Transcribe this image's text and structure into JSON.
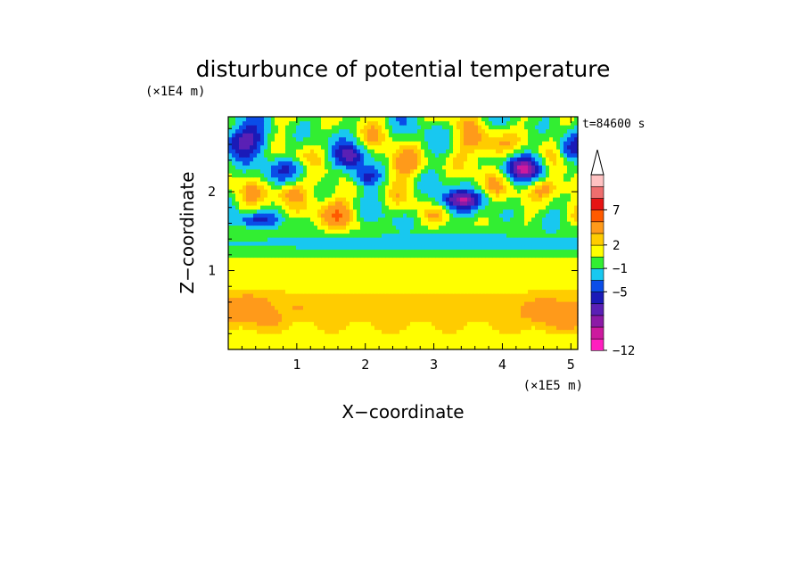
{
  "chart_data": {
    "type": "heatmap",
    "title": "disturbunce of potential temperature",
    "time_label": "t=84600 s",
    "xlabel": "X−coordinate",
    "ylabel": "Z−coordinate",
    "x_scale_label": "(×1E5 m)",
    "y_scale_label": "(×1E4 m)",
    "xlim": [
      0,
      5.1
    ],
    "ylim": [
      0,
      2.95
    ],
    "x_ticks": [
      1,
      2,
      3,
      4,
      5
    ],
    "y_ticks": [
      1,
      2
    ],
    "x_tick_labels": [
      "1",
      "2",
      "3",
      "4",
      "5"
    ],
    "y_tick_labels": [
      "1",
      "2"
    ],
    "colorbar": {
      "levels": [
        -12,
        -11,
        -10,
        -9,
        -7,
        -5,
        -3,
        -1,
        0.5,
        2,
        3,
        5,
        7,
        9,
        11
      ],
      "colors": [
        "#ff1fbf",
        "#cc1a9e",
        "#8c1aa6",
        "#5a20b5",
        "#1a1ab8",
        "#0a4de8",
        "#18c8f0",
        "#32ee32",
        "#ffff00",
        "#ffcc00",
        "#ff9a1a",
        "#ff5a00",
        "#e61414",
        "#ee6e6e",
        "#ffc2c2"
      ],
      "tick_values": [
        -12,
        -5,
        -1,
        2,
        7
      ],
      "tick_labels": [
        "−12",
        "−5",
        "−1",
        "2",
        "7"
      ],
      "extends": "max"
    }
  }
}
